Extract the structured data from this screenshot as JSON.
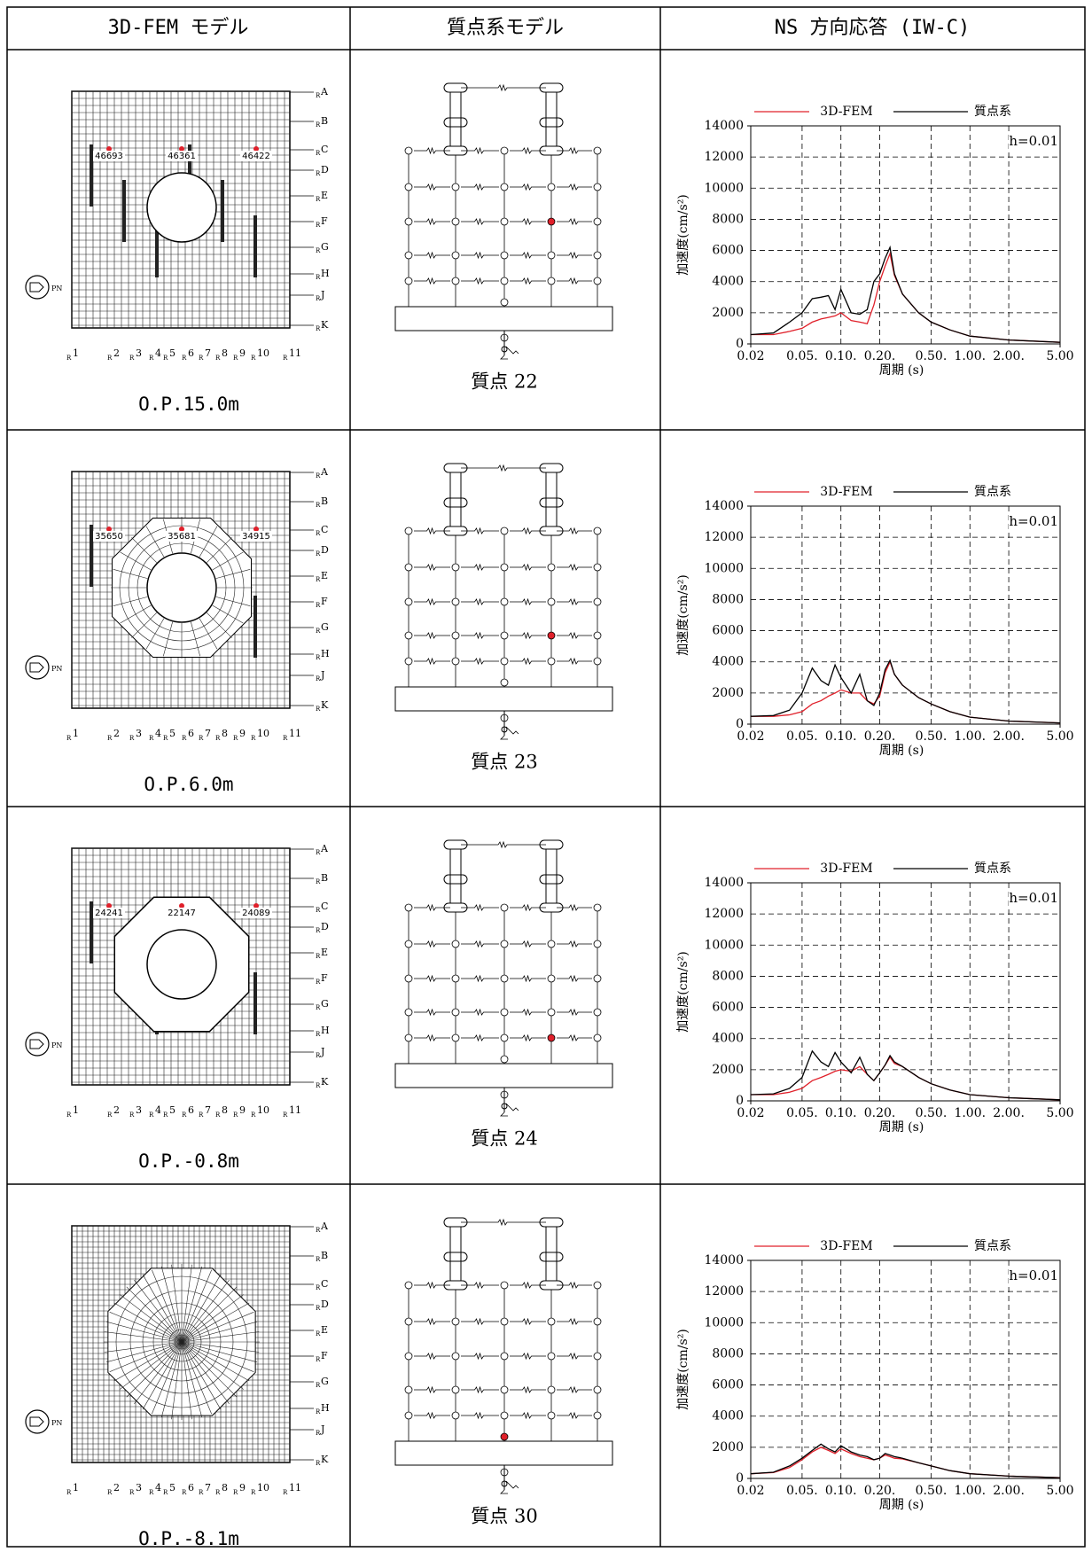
{
  "header": {
    "col1": "3D-FEM モデル",
    "col2": "質点系モデル",
    "col3": "NS 方向応答 (IW-C)"
  },
  "fem_axes": {
    "prefix": "R",
    "north_label": "PN",
    "rows": [
      "A",
      "B",
      "C",
      "D",
      "E",
      "F",
      "G",
      "H",
      "J",
      "K"
    ],
    "cols": [
      "1",
      "2",
      "3",
      "4",
      "5",
      "6",
      "7",
      "8",
      "9",
      "10",
      "11"
    ]
  },
  "rows": [
    {
      "elevation": "O.P.15.0m",
      "mass_point": "質点 22",
      "fem_node_labels": [
        "46693",
        "46361",
        "46422"
      ],
      "chart_data": {
        "type": "line",
        "annotation": "h=0.01",
        "xlabel": "周期 (s)",
        "ylabel": "加速度(cm/s²)",
        "log_x": true,
        "grid": true,
        "x": [
          0.02,
          0.03,
          0.04,
          0.05,
          0.06,
          0.07,
          0.08,
          0.09,
          0.1,
          0.12,
          0.14,
          0.16,
          0.18,
          0.2,
          0.22,
          0.24,
          0.26,
          0.3,
          0.4,
          0.5,
          0.7,
          1,
          2,
          5
        ],
        "xlim": [
          0.02,
          5
        ],
        "xticks": [
          {
            "value": 0.02,
            "label": "0.02"
          },
          {
            "value": 0.05,
            "label": "0.05."
          },
          {
            "value": 0.1,
            "label": "0.10."
          },
          {
            "value": 0.2,
            "label": "0.20."
          },
          {
            "value": 0.5,
            "label": "0.50."
          },
          {
            "value": 1,
            "label": "1.00."
          },
          {
            "value": 2,
            "label": "2.00."
          },
          {
            "value": 5,
            "label": "5.00"
          }
        ],
        "ylim": [
          0,
          14000
        ],
        "yticks": [
          0,
          2000,
          4000,
          6000,
          8000,
          10000,
          12000,
          14000
        ],
        "series": [
          {
            "name": "3D-FEM",
            "color": "#e0202a",
            "values": [
              600,
              600,
              800,
              1000,
              1400,
              1600,
              1700,
              1800,
              2000,
              1500,
              1400,
              1300,
              2500,
              4000,
              5000,
              5800,
              4400,
              3200,
              2000,
              1400,
              900,
              500,
              250,
              100
            ]
          },
          {
            "name": "質点系",
            "color": "#000000",
            "values": [
              600,
              700,
              1400,
              2000,
              2900,
              3000,
              3100,
              2200,
              3500,
              2000,
              1900,
              2200,
              4000,
              4500,
              5500,
              6200,
              4500,
              3200,
              2000,
              1400,
              900,
              500,
              250,
              100
            ]
          }
        ]
      }
    },
    {
      "elevation": "O.P.6.0m",
      "mass_point": "質点 23",
      "fem_node_labels": [
        "35650",
        "35681",
        "34915"
      ],
      "chart_data": {
        "type": "line",
        "annotation": "h=0.01",
        "xlabel": "周期 (s)",
        "ylabel": "加速度(cm/s²)",
        "log_x": true,
        "grid": true,
        "x": [
          0.02,
          0.03,
          0.04,
          0.05,
          0.06,
          0.07,
          0.08,
          0.09,
          0.1,
          0.12,
          0.14,
          0.16,
          0.18,
          0.2,
          0.22,
          0.24,
          0.26,
          0.3,
          0.4,
          0.5,
          0.7,
          1,
          2,
          5
        ],
        "xlim": [
          0.02,
          5
        ],
        "xticks": [
          {
            "value": 0.02,
            "label": "0.02"
          },
          {
            "value": 0.05,
            "label": "0.05."
          },
          {
            "value": 0.1,
            "label": "0.10."
          },
          {
            "value": 0.2,
            "label": "0.20."
          },
          {
            "value": 0.5,
            "label": "0.50."
          },
          {
            "value": 1,
            "label": "1.00."
          },
          {
            "value": 2,
            "label": "2.00."
          },
          {
            "value": 5,
            "label": "5.00"
          }
        ],
        "ylim": [
          0,
          14000
        ],
        "yticks": [
          0,
          2000,
          4000,
          6000,
          8000,
          10000,
          12000,
          14000
        ],
        "series": [
          {
            "name": "3D-FEM",
            "color": "#e0202a",
            "values": [
              500,
              500,
              600,
              800,
              1300,
              1500,
              1800,
              2000,
              2200,
              2000,
              2000,
              1500,
              1300,
              1800,
              3300,
              4000,
              3200,
              2500,
              1700,
              1300,
              800,
              450,
              200,
              80
            ]
          },
          {
            "name": "質点系",
            "color": "#000000",
            "values": [
              500,
              550,
              900,
              2000,
              3600,
              2800,
              2500,
              3800,
              3000,
              2000,
              3200,
              1500,
              1200,
              2000,
              3500,
              4100,
              3200,
              2500,
              1700,
              1300,
              800,
              450,
              200,
              80
            ]
          }
        ]
      }
    },
    {
      "elevation": "O.P.-0.8m",
      "mass_point": "質点 24",
      "fem_node_labels": [
        "24241",
        "22147",
        "24089"
      ],
      "chart_data": {
        "type": "line",
        "annotation": "h=0.01",
        "xlabel": "周期 (s)",
        "ylabel": "加速度(cm/s²)",
        "log_x": true,
        "grid": true,
        "x": [
          0.02,
          0.03,
          0.04,
          0.05,
          0.06,
          0.07,
          0.08,
          0.09,
          0.1,
          0.12,
          0.14,
          0.16,
          0.18,
          0.2,
          0.22,
          0.24,
          0.26,
          0.3,
          0.4,
          0.5,
          0.7,
          1,
          2,
          5
        ],
        "xlim": [
          0.02,
          5
        ],
        "xticks": [
          {
            "value": 0.02,
            "label": "0.02"
          },
          {
            "value": 0.05,
            "label": "0.05."
          },
          {
            "value": 0.1,
            "label": "0.10."
          },
          {
            "value": 0.2,
            "label": "0.20."
          },
          {
            "value": 0.5,
            "label": "0.50."
          },
          {
            "value": 1,
            "label": "1.00."
          },
          {
            "value": 2,
            "label": "2.00."
          },
          {
            "value": 5,
            "label": "5.00"
          }
        ],
        "ylim": [
          0,
          14000
        ],
        "yticks": [
          0,
          2000,
          4000,
          6000,
          8000,
          10000,
          12000,
          14000
        ],
        "series": [
          {
            "name": "3D-FEM",
            "color": "#e0202a",
            "values": [
              400,
              400,
              550,
              800,
              1300,
              1500,
              1700,
              1900,
              2000,
              1900,
              2200,
              1700,
              1300,
              1800,
              2300,
              2800,
              2400,
              2200,
              1500,
              1100,
              700,
              400,
              200,
              70
            ]
          },
          {
            "name": "質点系",
            "color": "#000000",
            "values": [
              400,
              450,
              800,
              1500,
              3200,
              2500,
              2200,
              3100,
              2500,
              1800,
              2800,
              1700,
              1300,
              1800,
              2300,
              2900,
              2500,
              2200,
              1500,
              1100,
              700,
              400,
              200,
              70
            ]
          }
        ]
      }
    },
    {
      "elevation": "O.P.-8.1m",
      "mass_point": "質点 30",
      "fem_node_labels": [],
      "chart_data": {
        "type": "line",
        "annotation": "h=0.01",
        "xlabel": "周期 (s)",
        "ylabel": "加速度(cm/s²)",
        "log_x": true,
        "grid": true,
        "x": [
          0.02,
          0.03,
          0.04,
          0.05,
          0.06,
          0.07,
          0.08,
          0.09,
          0.1,
          0.12,
          0.14,
          0.16,
          0.18,
          0.2,
          0.22,
          0.24,
          0.26,
          0.3,
          0.4,
          0.5,
          0.7,
          1,
          2,
          5
        ],
        "xlim": [
          0.02,
          5
        ],
        "xticks": [
          {
            "value": 0.02,
            "label": "0.02"
          },
          {
            "value": 0.05,
            "label": "0.05."
          },
          {
            "value": 0.1,
            "label": "0.10."
          },
          {
            "value": 0.2,
            "label": "0.20."
          },
          {
            "value": 0.5,
            "label": "0.50."
          },
          {
            "value": 1,
            "label": "1.00."
          },
          {
            "value": 2,
            "label": "2.00."
          },
          {
            "value": 5,
            "label": "5.00"
          }
        ],
        "ylim": [
          0,
          14000
        ],
        "yticks": [
          0,
          2000,
          4000,
          6000,
          8000,
          10000,
          12000,
          14000
        ],
        "series": [
          {
            "name": "3D-FEM",
            "color": "#e0202a",
            "values": [
              300,
              380,
              700,
              1200,
              1700,
              2000,
              1800,
              1600,
              1900,
              1600,
              1400,
              1300,
              1200,
              1300,
              1500,
              1400,
              1300,
              1250,
              1000,
              800,
              500,
              300,
              150,
              50
            ]
          },
          {
            "name": "質点系",
            "color": "#000000",
            "values": [
              300,
              400,
              800,
              1300,
              1800,
              2200,
              1900,
              1700,
              2100,
              1700,
              1500,
              1400,
              1200,
              1300,
              1600,
              1500,
              1400,
              1300,
              1000,
              800,
              500,
              300,
              150,
              50
            ]
          }
        ]
      }
    }
  ]
}
